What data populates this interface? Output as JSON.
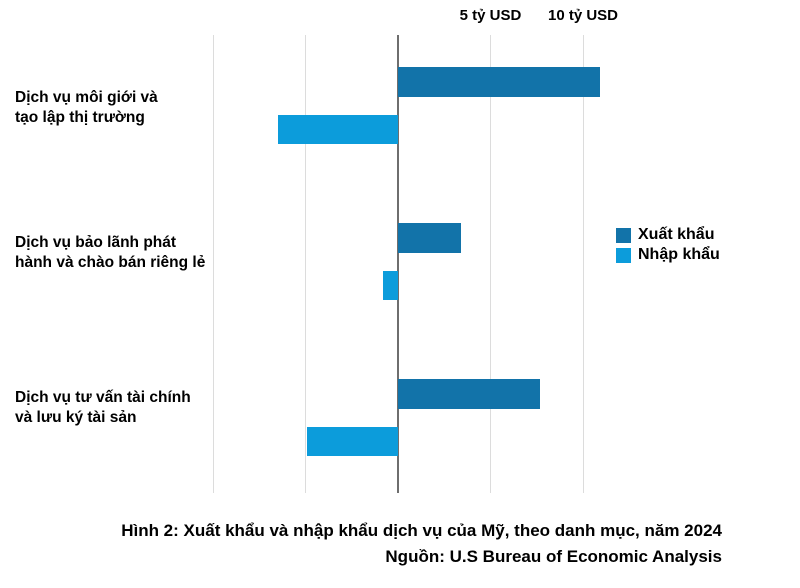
{
  "chart_data": {
    "type": "bar",
    "orientation": "horizontal-diverging",
    "title": "Hình 2: Xuất khẩu và nhập khẩu dịch vụ của Mỹ, theo danh mục, năm 2024",
    "source": "Nguồn: U.S Bureau of Economic Analysis",
    "unit": "tỷ USD",
    "categories": [
      "Dịch vụ môi giới và tạo lập thị trường",
      "Dịch vụ bảo lãnh phát hành và chào bán riêng lẻ",
      "Dịch vụ tư vấn tài chính và lưu ký tài sản"
    ],
    "category_lines": [
      [
        "Dịch vụ môi giới và",
        "tạo lập thị trường"
      ],
      [
        "Dịch vụ bảo lãnh phát",
        "hành và chào bán riêng lẻ"
      ],
      [
        "Dịch vụ tư vấn tài chính",
        "và lưu ký tài sản"
      ]
    ],
    "series": [
      {
        "name": "Xuất khẩu",
        "color": "#1273a9",
        "direction": "right",
        "values": [
          10.9,
          3.4,
          7.7
        ]
      },
      {
        "name": "Nhập khẩu",
        "color": "#0c9cdb",
        "direction": "left",
        "values": [
          6.5,
          0.8,
          4.9
        ]
      }
    ],
    "axis": {
      "tick_labels": [
        "5 tỷ USD",
        "10 tỷ USD"
      ],
      "tick_values": [
        5,
        10
      ],
      "gridline_values": [
        -10,
        -5,
        0,
        5,
        10
      ],
      "zero_line_color": "#6e6e6e",
      "gridline_color": "#dcdcdc"
    },
    "legend_position": "right",
    "grid": true
  }
}
